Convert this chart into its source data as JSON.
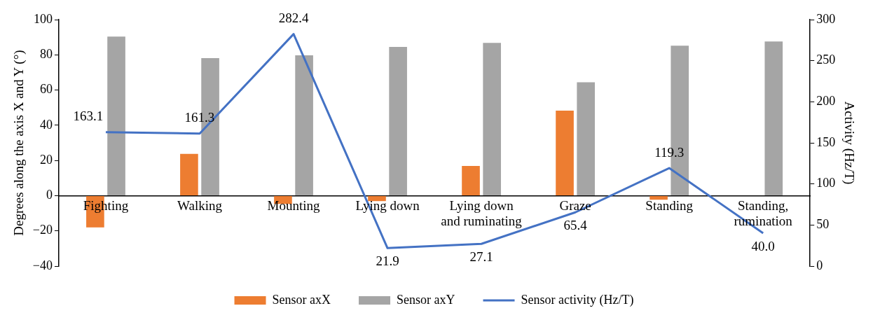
{
  "chart_data": {
    "type": "bar",
    "categories": [
      "Fighting",
      "Walking",
      "Mounting",
      "Lying down",
      "Lying down and ruminating",
      "Graze",
      "Standing",
      "Standing, rumination"
    ],
    "series": [
      {
        "name": "Sensor axX",
        "color": "#ed7d31",
        "values": [
          -18,
          23.7,
          -4.7,
          -3.1,
          16.9,
          48.3,
          -2.3,
          0
        ]
      },
      {
        "name": "Sensor axY",
        "color": "#a5a5a5",
        "values": [
          90.4,
          78.1,
          79.7,
          84.5,
          86.8,
          64.4,
          85.2,
          87.6
        ]
      },
      {
        "name": "Sensor activity (Hz/T)",
        "type": "line",
        "axis": "y2",
        "color": "#4472c4",
        "values": [
          163.1,
          161.3,
          282.4,
          21.9,
          27.1,
          65.4,
          119.3,
          40.0
        ],
        "value_labels": [
          "163.1",
          "161.3",
          "282.4",
          "21.9",
          "27.1",
          "65.4",
          "119.3",
          "40.0"
        ]
      }
    ],
    "ylabel": "Degrees along the axis X and Y (°)",
    "y2label": "Activity (Hz/T)",
    "ylim": [
      -40,
      100
    ],
    "yticks": [
      -40,
      -20,
      0,
      20,
      40,
      60,
      80,
      100
    ],
    "y2lim": [
      0,
      300
    ],
    "y2ticks": [
      0,
      50,
      100,
      150,
      200,
      250,
      300
    ],
    "grid": false,
    "legend": "bottom",
    "marker": "none",
    "line_style": "solid"
  }
}
